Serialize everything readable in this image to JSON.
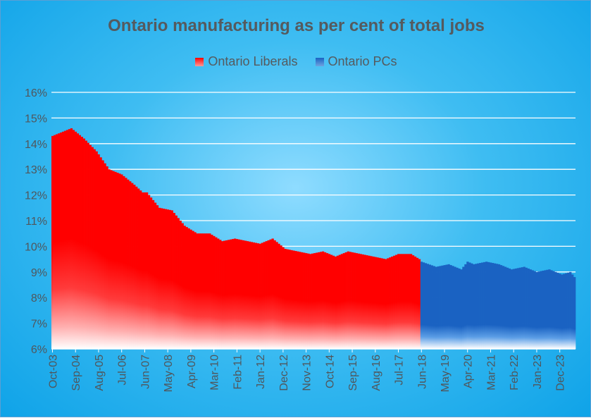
{
  "chart_data": {
    "type": "bar",
    "title": "Ontario manufacturing as per cent of total jobs",
    "xlabel": "",
    "ylabel": "",
    "ylim": [
      6,
      16
    ],
    "yticks": [
      "6%",
      "7%",
      "8%",
      "9%",
      "10%",
      "11%",
      "12%",
      "13%",
      "14%",
      "15%",
      "16%"
    ],
    "x_tick_labels": [
      "Oct-03",
      "Sep-04",
      "Aug-05",
      "Jul-06",
      "Jun-07",
      "May-08",
      "Apr-09",
      "Mar-10",
      "Feb-11",
      "Jan-12",
      "Dec-12",
      "Nov-13",
      "Oct-14",
      "Sep-15",
      "Aug-16",
      "Jul-17",
      "Jun-18",
      "May-19",
      "Apr-20",
      "Mar-21",
      "Feb-22",
      "Jan-23",
      "Dec-23"
    ],
    "grid": true,
    "legend_position": "top-center",
    "series": [
      {
        "name": "Ontario Liberals",
        "color": "#ff0000",
        "start": "Oct-03",
        "end": "May-18",
        "anchors": [
          [
            "Oct-03",
            14.3
          ],
          [
            "Jan-04",
            14.4
          ],
          [
            "Jul-04",
            14.6
          ],
          [
            "Oct-04",
            14.4
          ],
          [
            "Jan-05",
            14.2
          ],
          [
            "Jul-05",
            13.7
          ],
          [
            "Jan-06",
            13.0
          ],
          [
            "Jul-06",
            12.8
          ],
          [
            "Jan-07",
            12.4
          ],
          [
            "May-07",
            12.1
          ],
          [
            "Jul-07",
            12.1
          ],
          [
            "Jan-08",
            11.5
          ],
          [
            "Jul-08",
            11.4
          ],
          [
            "Jan-09",
            10.8
          ],
          [
            "Jul-09",
            10.5
          ],
          [
            "Jan-10",
            10.5
          ],
          [
            "Jul-10",
            10.2
          ],
          [
            "Jan-11",
            10.3
          ],
          [
            "Jul-11",
            10.2
          ],
          [
            "Jan-12",
            10.1
          ],
          [
            "Jul-12",
            10.3
          ],
          [
            "Jan-13",
            9.9
          ],
          [
            "Jul-13",
            9.8
          ],
          [
            "Jan-14",
            9.7
          ],
          [
            "Jul-14",
            9.8
          ],
          [
            "Jan-15",
            9.6
          ],
          [
            "Jul-15",
            9.8
          ],
          [
            "Jan-16",
            9.7
          ],
          [
            "Jul-16",
            9.6
          ],
          [
            "Jan-17",
            9.5
          ],
          [
            "Jul-17",
            9.7
          ],
          [
            "Jan-18",
            9.7
          ],
          [
            "May-18",
            9.5
          ]
        ]
      },
      {
        "name": "Ontario PCs",
        "color": "#1a62c2",
        "start": "Jun-18",
        "end": "Jul-24",
        "anchors": [
          [
            "Jun-18",
            9.4
          ],
          [
            "Jan-19",
            9.2
          ],
          [
            "Jul-19",
            9.3
          ],
          [
            "Jan-20",
            9.1
          ],
          [
            "Apr-20",
            9.4
          ],
          [
            "Jul-20",
            9.3
          ],
          [
            "Jan-21",
            9.4
          ],
          [
            "Jul-21",
            9.3
          ],
          [
            "Jan-22",
            9.1
          ],
          [
            "Jul-22",
            9.2
          ],
          [
            "Jan-23",
            9.0
          ],
          [
            "Jul-23",
            9.1
          ],
          [
            "Jan-24",
            8.9
          ],
          [
            "May-24",
            9.0
          ],
          [
            "Jul-24",
            8.8
          ]
        ]
      }
    ]
  }
}
